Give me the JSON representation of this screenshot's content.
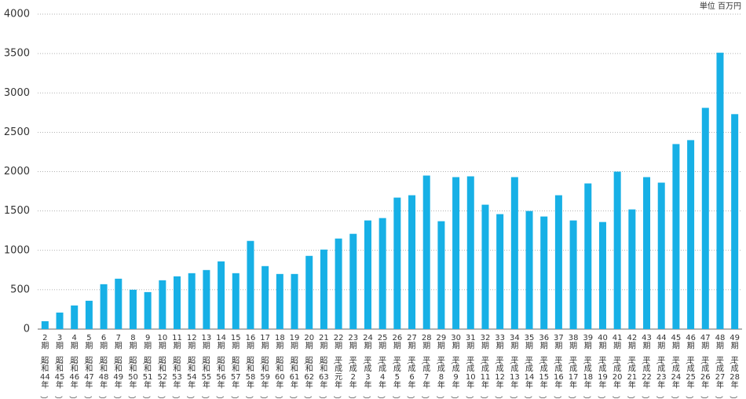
{
  "chart_data": {
    "type": "bar",
    "unit_label": "単位 百万円",
    "categories": [
      "2期（昭和44年）",
      "3期（昭和45年）",
      "4期（昭和46年）",
      "5期（昭和47年）",
      "6期（昭和48年）",
      "7期（昭和49年）",
      "8期（昭和50年）",
      "9期（昭和51年）",
      "10期（昭和52年）",
      "11期（昭和53年）",
      "12期（昭和54年）",
      "13期（昭和55年）",
      "14期（昭和56年）",
      "15期（昭和57年）",
      "16期（昭和58年）",
      "17期（昭和59年）",
      "18期（昭和60年）",
      "19期（昭和61年）",
      "20期（昭和62年）",
      "21期（昭和63年）",
      "22期（平成元年）",
      "23期（平成2年）",
      "24期（平成3年）",
      "25期（平成4年）",
      "26期（平成5年）",
      "27期（平成6年）",
      "28期（平成7年）",
      "29期（平成8年）",
      "30期（平成9年）",
      "31期（平成10年）",
      "32期（平成11年）",
      "33期（平成12年）",
      "34期（平成13年）",
      "35期（平成14年）",
      "36期（平成15年）",
      "37期（平成16年）",
      "38期（平成17年）",
      "39期（平成18年）",
      "40期（平成19年）",
      "41期（平成20年）",
      "42期（平成21年）",
      "43期（平成22年）",
      "44期（平成23年）",
      "45期（平成24年）",
      "46期（平成25年）",
      "47期（平成26年）",
      "48期（平成27年）",
      "49期（平成28年）"
    ],
    "values": [
      100,
      210,
      300,
      360,
      570,
      640,
      500,
      470,
      620,
      670,
      710,
      750,
      860,
      710,
      1120,
      800,
      700,
      700,
      930,
      1010,
      1150,
      1210,
      1380,
      1410,
      1670,
      1700,
      1950,
      1370,
      1930,
      1940,
      1580,
      1460,
      1930,
      1500,
      1430,
      1700,
      1380,
      1850,
      1360,
      2000,
      1520,
      1930,
      1860,
      2350,
      2400,
      2810,
      3510,
      2730
    ],
    "color": "#17b0e6",
    "ylim": [
      0,
      4000
    ],
    "yticks": [
      0,
      500,
      1000,
      1500,
      2000,
      2500,
      3000,
      3500,
      4000
    ],
    "grid": true
  }
}
